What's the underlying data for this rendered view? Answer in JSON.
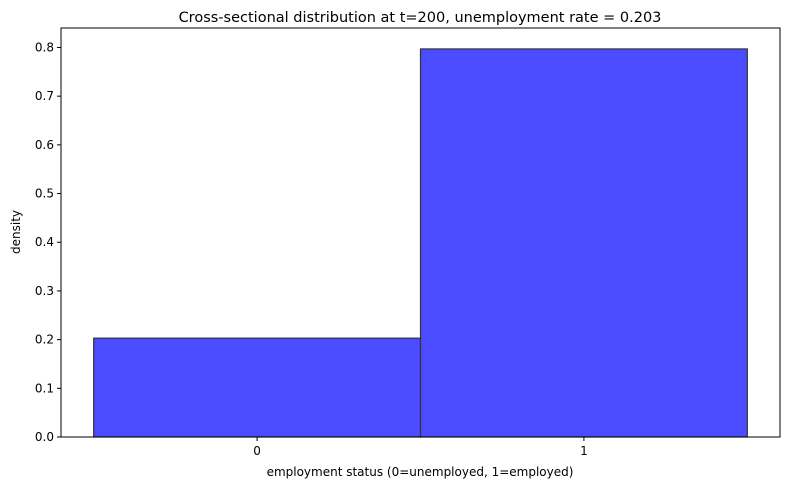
{
  "chart_data": {
    "type": "bar",
    "title": "Cross-sectional distribution at t=200, unemployment rate = 0.203",
    "xlabel": "employment status (0=unemployed, 1=employed)",
    "ylabel": "density",
    "categories": [
      "0",
      "1"
    ],
    "bins": [
      [
        -0.5,
        0.5
      ],
      [
        0.5,
        1.5
      ]
    ],
    "values": [
      0.203,
      0.797
    ],
    "xlim": [
      -0.6,
      1.6
    ],
    "ylim": [
      0,
      0.84
    ],
    "xticks": [
      0,
      1
    ],
    "xtick_labels": [
      "0",
      "1"
    ],
    "yticks": [
      0.0,
      0.1,
      0.2,
      0.3,
      0.4,
      0.5,
      0.6,
      0.7,
      0.8
    ],
    "ytick_labels": [
      "0.0",
      "0.1",
      "0.2",
      "0.3",
      "0.4",
      "0.5",
      "0.6",
      "0.7",
      "0.8"
    ],
    "grid": false,
    "bar_color": "#4b4bff",
    "edge_color": "#333333"
  }
}
